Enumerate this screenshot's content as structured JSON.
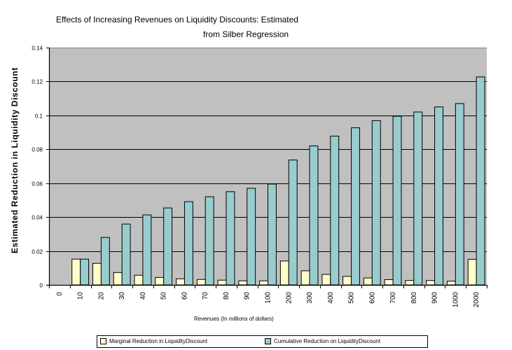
{
  "chart_data": {
    "type": "bar",
    "title": "Effects of Increasing Revenues on Liquidity Discounts: Estimated",
    "subtitle": "from Silber Regression",
    "xlabel": "Revenues (In millions of dollars)",
    "ylabel": "Estimated Reduction in Liquidity Discount",
    "ylim": [
      0,
      0.14
    ],
    "yticks": [
      "0",
      "0.02",
      "0.04",
      "0.06",
      "0.08",
      "0.1",
      "0.12",
      "0.14"
    ],
    "ytick_values": [
      0,
      0.02,
      0.04,
      0.06,
      0.08,
      0.1,
      0.12,
      0.14
    ],
    "grid": true,
    "legend_position": "bottom",
    "categories": [
      "0",
      "10",
      "20",
      "30",
      "40",
      "50",
      "60",
      "70",
      "80",
      "90",
      "100",
      "200",
      "300",
      "400",
      "500",
      "600",
      "700",
      "800",
      "900",
      "1000",
      "2000"
    ],
    "series": [
      {
        "name": "Marginal Reduction in LiquidityDiscount",
        "color": "#ffffcc",
        "values": [
          0,
          0.0152,
          0.0127,
          0.0073,
          0.0057,
          0.0044,
          0.0036,
          0.0032,
          0.0028,
          0.0024,
          0.0024,
          0.0141,
          0.0083,
          0.0062,
          0.005,
          0.0041,
          0.0031,
          0.0026,
          0.0026,
          0.0022,
          0.0151
        ]
      },
      {
        "name": "Cumulative Reduction on LiquidityDiscount",
        "color": "#99cccc",
        "values": [
          0,
          0.0152,
          0.028,
          0.0359,
          0.0413,
          0.0454,
          0.0491,
          0.052,
          0.055,
          0.057,
          0.0595,
          0.0737,
          0.082,
          0.0878,
          0.0927,
          0.0969,
          0.0995,
          0.102,
          0.105,
          0.107,
          0.1227
        ]
      }
    ],
    "plot_background": "#c0c0c0"
  }
}
